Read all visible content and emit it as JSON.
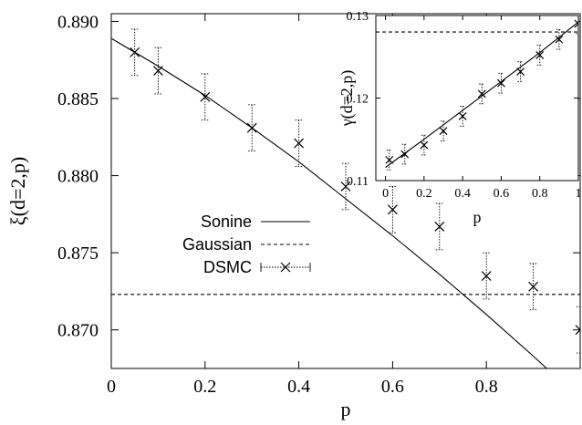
{
  "chart_data": [
    {
      "type": "line",
      "xlabel": "p",
      "ylabel": "ξ(d=2,p)",
      "xlim": [
        0,
        1
      ],
      "ylim": [
        0.8675,
        0.8905
      ],
      "x_ticks": [
        0,
        0.2,
        0.4,
        0.6,
        0.8
      ],
      "x_tick_labels": [
        "0",
        "0.2",
        "0.4",
        "0.6",
        "0.8"
      ],
      "y_ticks": [
        0.87,
        0.875,
        0.88,
        0.885,
        0.89
      ],
      "y_tick_labels": [
        "0.870",
        "0.875",
        "0.880",
        "0.885",
        "0.890"
      ],
      "grid": false,
      "legend_position": "center-left",
      "series": [
        {
          "name": "Sonine",
          "style": "solid",
          "x": [
            0,
            0.1,
            0.2,
            0.3,
            0.4,
            0.5,
            0.6,
            0.7,
            0.8,
            0.9,
            1.0
          ],
          "y": [
            0.8889,
            0.8871,
            0.8852,
            0.8831,
            0.8809,
            0.8785,
            0.8761,
            0.8736,
            0.871,
            0.8683,
            0.8655
          ]
        },
        {
          "name": "Gaussian",
          "style": "dashed",
          "x": [
            0,
            1
          ],
          "y": [
            0.8723,
            0.8723
          ]
        },
        {
          "name": "DSMC",
          "style": "markers-x-errorbars",
          "x": [
            0.05,
            0.1,
            0.2,
            0.3,
            0.4,
            0.5,
            0.6,
            0.7,
            0.8,
            0.9,
            1.0
          ],
          "y": [
            0.888,
            0.8868,
            0.8851,
            0.8831,
            0.8821,
            0.8793,
            0.8778,
            0.8767,
            0.8735,
            0.8728,
            0.87
          ],
          "err": [
            0.0015,
            0.0015,
            0.0015,
            0.0015,
            0.0015,
            0.0015,
            0.0015,
            0.0015,
            0.0015,
            0.0015,
            0.0015
          ]
        }
      ]
    },
    {
      "type": "line",
      "inset": true,
      "xlabel": "p",
      "ylabel": "γ(d=2,p)",
      "xlim": [
        -0.05,
        1.0
      ],
      "ylim": [
        0.11,
        0.13
      ],
      "x_ticks": [
        0,
        0.2,
        0.4,
        0.6,
        0.8,
        1
      ],
      "x_tick_labels": [
        "0",
        "0.2",
        "0.4",
        "0.6",
        "0.8",
        "1"
      ],
      "y_ticks": [
        0.11,
        0.12,
        0.13
      ],
      "y_tick_labels": [
        "0.11",
        "0.12",
        "0.13"
      ],
      "grid": false,
      "series": [
        {
          "name": "Sonine",
          "style": "solid",
          "x": [
            0,
            0.2,
            0.4,
            0.6,
            0.8,
            1.0
          ],
          "y": [
            0.1116,
            0.115,
            0.1185,
            0.122,
            0.1255,
            0.1292
          ]
        },
        {
          "name": "Gaussian",
          "style": "dashed",
          "x": [
            -0.05,
            1.0
          ],
          "y": [
            0.128,
            0.128
          ]
        },
        {
          "name": "DSMC",
          "style": "markers-x-errorbars",
          "x": [
            0.02,
            0.1,
            0.2,
            0.3,
            0.4,
            0.5,
            0.6,
            0.7,
            0.8,
            0.9,
            1.0
          ],
          "y": [
            0.1125,
            0.1132,
            0.1143,
            0.116,
            0.1178,
            0.1205,
            0.1218,
            0.1232,
            0.1252,
            0.1271,
            0.129
          ],
          "err": [
            0.0012,
            0.0012,
            0.0012,
            0.0012,
            0.0012,
            0.0012,
            0.0012,
            0.0012,
            0.0012,
            0.0012,
            0.0012
          ]
        }
      ]
    }
  ]
}
